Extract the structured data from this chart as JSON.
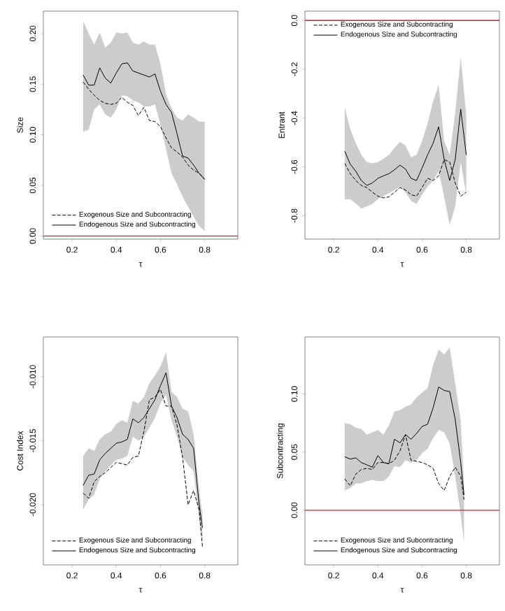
{
  "chart_data": [
    {
      "type": "line",
      "xlabel": "τ",
      "ylabel": "Size",
      "xlim": [
        0.07,
        0.95
      ],
      "ylim": [
        -0.003,
        0.222
      ],
      "xticks": [
        0.2,
        0.4,
        0.6,
        0.8
      ],
      "yticks": [
        {
          "value": 0,
          "label": "0.00"
        },
        {
          "value": 0.05,
          "label": "0.05"
        },
        {
          "value": 0.1,
          "label": "0.10"
        },
        {
          "value": 0.15,
          "label": "0.15"
        },
        {
          "value": 0.2,
          "label": "0.20"
        }
      ],
      "legend": "bottom left",
      "marker": "none",
      "x": [
        0.25,
        0.275,
        0.3,
        0.325,
        0.35,
        0.375,
        0.4,
        0.425,
        0.45,
        0.475,
        0.5,
        0.525,
        0.55,
        0.575,
        0.6,
        0.625,
        0.65,
        0.675,
        0.7,
        0.725,
        0.75,
        0.775,
        0.8
      ],
      "series": [
        {
          "name": "Exogenous Size and Subcontracting",
          "color": "#000000",
          "line_style": "dashed",
          "values": [
            0.152,
            0.145,
            0.139,
            0.134,
            0.131,
            0.13,
            0.131,
            0.137,
            0.132,
            0.129,
            0.119,
            0.127,
            0.114,
            0.113,
            0.108,
            0.097,
            0.087,
            0.083,
            0.078,
            0.07,
            0.065,
            0.062,
            0.056
          ]
        },
        {
          "name": "Endogenous Size and Subcontracting",
          "color": "#000000",
          "line_style": "solid",
          "values": [
            0.159,
            0.149,
            0.149,
            0.166,
            0.156,
            0.151,
            0.161,
            0.17,
            0.171,
            0.163,
            0.161,
            0.159,
            0.157,
            0.16,
            0.143,
            0.13,
            0.122,
            0.101,
            0.079,
            0.077,
            0.07,
            0.062,
            0.056
          ],
          "upper": [
            0.212,
            0.2,
            0.189,
            0.201,
            0.186,
            0.191,
            0.201,
            0.2,
            0.201,
            0.191,
            0.189,
            0.192,
            0.189,
            0.189,
            0.17,
            0.14,
            0.126,
            0.117,
            0.114,
            0.12,
            0.117,
            0.113,
            0.113
          ],
          "lower": [
            0.103,
            0.105,
            0.125,
            0.13,
            0.12,
            0.117,
            0.125,
            0.139,
            0.138,
            0.134,
            0.132,
            0.128,
            0.128,
            0.13,
            0.11,
            0.086,
            0.062,
            0.051,
            0.039,
            0.029,
            0.019,
            0.01,
            0.005
          ]
        }
      ],
      "ref_lines": [
        {
          "axis": "y",
          "value": 0,
          "color": "#d42020"
        }
      ]
    },
    {
      "type": "line",
      "xlabel": "τ",
      "ylabel": "Entrant",
      "xlim": [
        0.07,
        0.95
      ],
      "ylim": [
        -0.896,
        0.038
      ],
      "xticks": [
        0.2,
        0.4,
        0.6,
        0.8
      ],
      "yticks": [
        -0.8,
        -0.6,
        -0.4,
        -0.2,
        {
          "value": 0,
          "label": "0.0"
        }
      ],
      "legend": "top left",
      "marker": "none",
      "x": [
        0.25,
        0.275,
        0.3,
        0.325,
        0.35,
        0.375,
        0.4,
        0.425,
        0.45,
        0.475,
        0.5,
        0.525,
        0.55,
        0.575,
        0.6,
        0.625,
        0.65,
        0.675,
        0.7,
        0.725,
        0.75,
        0.775,
        0.8
      ],
      "series": [
        {
          "name": "Exogenous Size and Subcontracting",
          "color": "#000000",
          "line_style": "dashed",
          "values": [
            -0.586,
            -0.628,
            -0.656,
            -0.676,
            -0.685,
            -0.704,
            -0.72,
            -0.727,
            -0.723,
            -0.704,
            -0.685,
            -0.695,
            -0.714,
            -0.72,
            -0.685,
            -0.647,
            -0.656,
            -0.637,
            -0.57,
            -0.58,
            -0.666,
            -0.72,
            -0.704
          ]
        },
        {
          "name": "Endogenous Size and Subcontracting",
          "color": "#000000",
          "line_style": "solid",
          "values": [
            -0.536,
            -0.589,
            -0.618,
            -0.656,
            -0.676,
            -0.666,
            -0.647,
            -0.637,
            -0.628,
            -0.612,
            -0.593,
            -0.609,
            -0.647,
            -0.656,
            -0.605,
            -0.551,
            -0.503,
            -0.436,
            -0.57,
            -0.656,
            -0.57,
            -0.364,
            -0.551
          ],
          "upper": [
            -0.356,
            -0.446,
            -0.503,
            -0.551,
            -0.58,
            -0.586,
            -0.58,
            -0.567,
            -0.551,
            -0.522,
            -0.498,
            -0.513,
            -0.561,
            -0.551,
            -0.494,
            -0.421,
            -0.331,
            -0.264,
            -0.494,
            -0.551,
            -0.379,
            -0.149,
            -0.389
          ],
          "lower": [
            -0.733,
            -0.733,
            -0.75,
            -0.771,
            -0.762,
            -0.752,
            -0.733,
            -0.72,
            -0.708,
            -0.695,
            -0.681,
            -0.704,
            -0.739,
            -0.752,
            -0.714,
            -0.681,
            -0.656,
            -0.618,
            -0.723,
            -0.838,
            -0.762,
            -0.58,
            -0.714
          ]
        }
      ],
      "ref_lines": [
        {
          "axis": "y",
          "value": 0,
          "color": "#d42020"
        }
      ]
    },
    {
      "type": "line",
      "xlabel": "τ",
      "ylabel": "Cost Index",
      "xlim": [
        0.07,
        0.95
      ],
      "ylim": [
        -0.0247,
        -0.0069
      ],
      "xticks": [
        0.2,
        0.4,
        0.6,
        0.8
      ],
      "yticks": [
        {
          "value": -0.02,
          "label": "-0.020"
        },
        {
          "value": -0.015,
          "label": "-0.015"
        },
        {
          "value": -0.01,
          "label": "-0.010"
        }
      ],
      "legend": "bottom left",
      "marker": "none",
      "x": [
        0.25,
        0.275,
        0.3,
        0.325,
        0.35,
        0.375,
        0.4,
        0.425,
        0.45,
        0.475,
        0.5,
        0.525,
        0.55,
        0.575,
        0.6,
        0.625,
        0.65,
        0.675,
        0.7,
        0.725,
        0.75,
        0.775,
        0.79
      ],
      "series": [
        {
          "name": "Exogenous Size and Subcontracting",
          "color": "#000000",
          "line_style": "dashed",
          "values": [
            -0.0191,
            -0.0195,
            -0.0182,
            -0.0178,
            -0.0175,
            -0.0171,
            -0.0167,
            -0.0168,
            -0.0169,
            -0.0163,
            -0.0162,
            -0.0143,
            -0.0118,
            -0.0116,
            -0.011,
            -0.0123,
            -0.0123,
            -0.0138,
            -0.0163,
            -0.02,
            -0.0189,
            -0.0204,
            -0.0233
          ]
        },
        {
          "name": "Endogenous Size and Subcontracting",
          "color": "#000000",
          "line_style": "solid",
          "values": [
            -0.0185,
            -0.0177,
            -0.0176,
            -0.0165,
            -0.016,
            -0.0156,
            -0.0152,
            -0.0151,
            -0.0149,
            -0.0133,
            -0.0136,
            -0.0132,
            -0.0125,
            -0.0118,
            -0.0107,
            -0.0097,
            -0.0123,
            -0.0132,
            -0.0145,
            -0.0149,
            -0.0156,
            -0.02,
            -0.0218
          ],
          "upper": [
            -0.0162,
            -0.0156,
            -0.0158,
            -0.0149,
            -0.0145,
            -0.0143,
            -0.0137,
            -0.0134,
            -0.0136,
            -0.0119,
            -0.0121,
            -0.0116,
            -0.0105,
            -0.0099,
            -0.0092,
            -0.0081,
            -0.0112,
            -0.0116,
            -0.0125,
            -0.0127,
            -0.0145,
            -0.0189,
            -0.0207
          ],
          "lower": [
            -0.0204,
            -0.0196,
            -0.0192,
            -0.018,
            -0.0174,
            -0.0169,
            -0.0165,
            -0.0164,
            -0.0162,
            -0.0147,
            -0.015,
            -0.0147,
            -0.014,
            -0.0132,
            -0.0121,
            -0.0114,
            -0.0134,
            -0.0147,
            -0.0163,
            -0.0169,
            -0.0174,
            -0.0211,
            -0.0229
          ]
        }
      ]
    },
    {
      "type": "line",
      "xlabel": "τ",
      "ylabel": "Subcontracting",
      "xlim": [
        0.07,
        0.95
      ],
      "ylim": [
        -0.047,
        0.149
      ],
      "xticks": [
        0.2,
        0.4,
        0.6,
        0.8
      ],
      "yticks": [
        {
          "value": 0,
          "label": "0.00"
        },
        {
          "value": 0.05,
          "label": "0.05"
        },
        {
          "value": 0.1,
          "label": "0.10"
        }
      ],
      "legend": "bottom left",
      "marker": "none",
      "x": [
        0.25,
        0.275,
        0.3,
        0.325,
        0.35,
        0.375,
        0.4,
        0.425,
        0.45,
        0.475,
        0.5,
        0.525,
        0.55,
        0.575,
        0.6,
        0.625,
        0.65,
        0.675,
        0.7,
        0.725,
        0.75,
        0.775,
        0.79
      ],
      "series": [
        {
          "name": "Exogenous Size and Subcontracting",
          "color": "#000000",
          "line_style": "dashed",
          "values": [
            0.027,
            0.021,
            0.031,
            0.035,
            0.036,
            0.035,
            0.041,
            0.041,
            0.04,
            0.043,
            0.051,
            0.065,
            0.043,
            0.042,
            0.041,
            0.039,
            0.036,
            0.023,
            0.017,
            0.029,
            0.037,
            0.029,
            0.009
          ]
        },
        {
          "name": "Endogenous Size and Subcontracting",
          "color": "#000000",
          "line_style": "solid",
          "values": [
            0.046,
            0.044,
            0.045,
            0.041,
            0.039,
            0.037,
            0.047,
            0.041,
            0.04,
            0.061,
            0.058,
            0.065,
            0.061,
            0.066,
            0.072,
            0.074,
            0.088,
            0.106,
            0.103,
            0.102,
            0.078,
            0.041,
            0.013
          ],
          "upper": [
            0.075,
            0.074,
            0.071,
            0.07,
            0.065,
            0.067,
            0.069,
            0.065,
            0.073,
            0.085,
            0.086,
            0.089,
            0.091,
            0.097,
            0.101,
            0.105,
            0.125,
            0.138,
            0.134,
            0.14,
            0.109,
            0.077,
            0.021
          ],
          "lower": [
            0.017,
            0.019,
            0.023,
            0.023,
            0.025,
            0.026,
            0.025,
            0.025,
            0.029,
            0.038,
            0.037,
            0.043,
            0.041,
            0.043,
            0.049,
            0.053,
            0.062,
            0.069,
            0.067,
            0.057,
            0.029,
            -0.004,
            -0.028
          ]
        }
      ],
      "ref_lines": [
        {
          "axis": "y",
          "value": 0,
          "color": "#d42020"
        }
      ]
    }
  ]
}
